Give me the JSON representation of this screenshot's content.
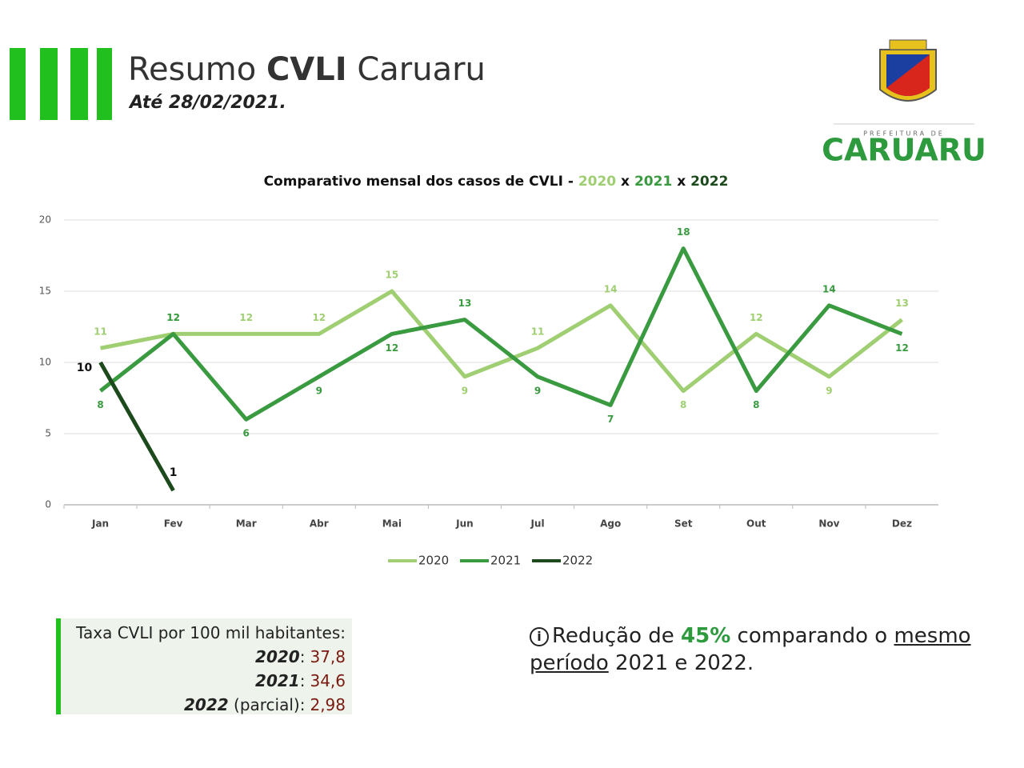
{
  "header": {
    "title_parts": [
      "Resumo ",
      "CVLI",
      " Caruaru"
    ],
    "date": "Até 28/02/2021."
  },
  "logo": {
    "caption": "PREFEITURA DE",
    "name": "CARUARU"
  },
  "chart_data": {
    "type": "line",
    "title_parts": [
      "Comparativo mensal dos casos de CVLI - ",
      "2020",
      " x ",
      "2021",
      " x ",
      "2022"
    ],
    "categories": [
      "Jan",
      "Fev",
      "Mar",
      "Abr",
      "Mai",
      "Jun",
      "Jul",
      "Ago",
      "Set",
      "Out",
      "Nov",
      "Dez"
    ],
    "series": [
      {
        "name": "2020",
        "color": "#9fcf72",
        "values": [
          11,
          12,
          12,
          12,
          15,
          9,
          11,
          14,
          8,
          12,
          9,
          13
        ]
      },
      {
        "name": "2021",
        "color": "#3a9a40",
        "values": [
          8,
          12,
          6,
          9,
          12,
          13,
          9,
          7,
          18,
          8,
          14,
          12
        ]
      },
      {
        "name": "2022",
        "color": "#1c4a1c",
        "values": [
          10,
          1,
          null,
          null,
          null,
          null,
          null,
          null,
          null,
          null,
          null,
          null
        ]
      }
    ],
    "ylim": [
      0,
      20
    ],
    "yticks": [
      0,
      5,
      10,
      15,
      20
    ],
    "grid": true,
    "legend": "bottom"
  },
  "rates": {
    "heading": "Taxa CVLI por 100 mil habitantes:",
    "items": [
      {
        "year": "2020",
        "text": ":",
        "value": "37,8"
      },
      {
        "year": "2021",
        "text": ":",
        "value": "34,6"
      },
      {
        "year": "2022",
        "text": " (parcial):",
        "value": "2,98"
      }
    ]
  },
  "note": {
    "parts": [
      "Redução de ",
      "45%",
      " comparando o ",
      "mesmo período",
      " 2021 e 2022."
    ]
  }
}
